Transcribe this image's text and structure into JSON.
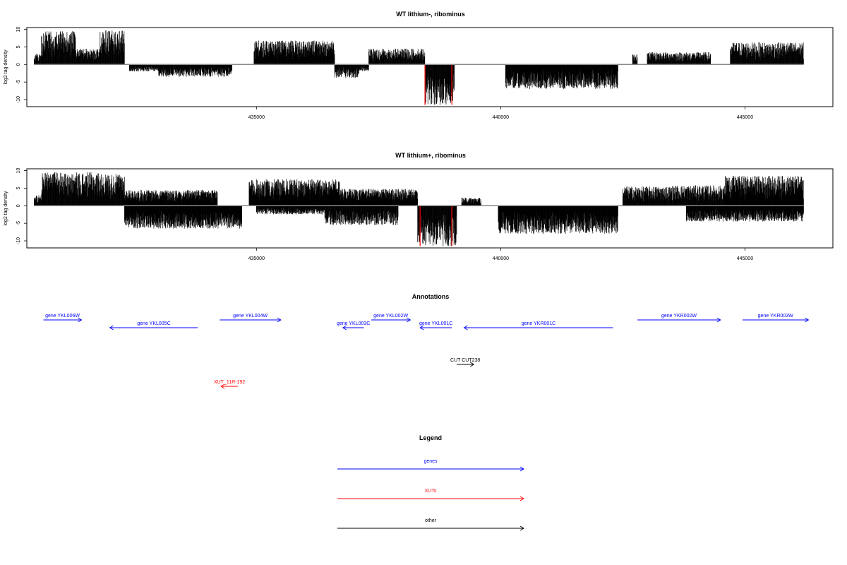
{
  "chart_data": [
    {
      "type": "bar",
      "title": "WT lithium-, ribominus",
      "ylabel": "log2 tag density",
      "ylim": [
        -12,
        10.5
      ],
      "xlim": [
        430300,
        446800
      ],
      "yticks": [
        -10,
        -5,
        0,
        5,
        10
      ],
      "xticks": [
        435000,
        440000,
        445000
      ],
      "xtick_labels": [
        "435000",
        "440000",
        "445000"
      ],
      "grid": false,
      "segments": [
        {
          "start": 430450,
          "end": 430600,
          "max": 3,
          "sign": 1
        },
        {
          "start": 430600,
          "end": 431300,
          "max": 9.5,
          "sign": 1
        },
        {
          "start": 431300,
          "end": 431800,
          "max": 4.5,
          "sign": 1
        },
        {
          "start": 431800,
          "end": 432300,
          "max": 9.8,
          "sign": 1
        },
        {
          "start": 432400,
          "end": 433000,
          "max": -2,
          "sign": -1
        },
        {
          "start": 433000,
          "end": 433900,
          "max": -3.5,
          "sign": -1
        },
        {
          "start": 433900,
          "end": 434500,
          "max": -3.5,
          "sign": -1
        },
        {
          "start": 434950,
          "end": 436600,
          "max": 6.8,
          "sign": 1
        },
        {
          "start": 436600,
          "end": 437100,
          "max": -3.8,
          "sign": -1
        },
        {
          "start": 437100,
          "end": 437300,
          "max": -2,
          "sign": -1
        },
        {
          "start": 437300,
          "end": 438450,
          "max": 4.5,
          "sign": 1
        },
        {
          "start": 438450,
          "end": 439050,
          "max": -11.5,
          "sign": -1
        },
        {
          "start": 440100,
          "end": 442400,
          "max": -7.0,
          "sign": -1
        },
        {
          "start": 442700,
          "end": 442800,
          "max": 3,
          "sign": 1
        },
        {
          "start": 443000,
          "end": 444300,
          "max": 3.5,
          "sign": 1
        },
        {
          "start": 444700,
          "end": 446200,
          "max": 6.3,
          "sign": 1
        }
      ],
      "red_lines": [
        {
          "x": 438450,
          "y": -11.5
        },
        {
          "x": 439000,
          "y": -11.5
        }
      ]
    },
    {
      "type": "bar",
      "title": "WT lithium+, ribominus",
      "ylabel": "log2 tag density",
      "ylim": [
        -12,
        10.5
      ],
      "xlim": [
        430300,
        446800
      ],
      "yticks": [
        -10,
        -5,
        0,
        5,
        10
      ],
      "xticks": [
        435000,
        440000,
        445000
      ],
      "xtick_labels": [
        "435000",
        "440000",
        "445000"
      ],
      "grid": false,
      "segments": [
        {
          "start": 430450,
          "end": 430600,
          "max": 3,
          "sign": 1
        },
        {
          "start": 430600,
          "end": 431800,
          "max": 9.5,
          "sign": 1
        },
        {
          "start": 431800,
          "end": 432300,
          "max": 9.0,
          "sign": 1
        },
        {
          "start": 432300,
          "end": 434200,
          "max": 4.5,
          "sign": 1
        },
        {
          "start": 432300,
          "end": 434700,
          "max": -6.5,
          "sign": -1
        },
        {
          "start": 434850,
          "end": 436700,
          "max": 7.5,
          "sign": 1
        },
        {
          "start": 435000,
          "end": 436400,
          "max": -2.5,
          "sign": -1
        },
        {
          "start": 436400,
          "end": 437900,
          "max": -5.5,
          "sign": -1
        },
        {
          "start": 436500,
          "end": 438300,
          "max": 4.8,
          "sign": 1
        },
        {
          "start": 438300,
          "end": 439100,
          "max": -11.5,
          "sign": -1
        },
        {
          "start": 439200,
          "end": 439600,
          "max": 2.3,
          "sign": 1
        },
        {
          "start": 439950,
          "end": 442400,
          "max": -8.0,
          "sign": -1
        },
        {
          "start": 442500,
          "end": 443500,
          "max": 5.5,
          "sign": 1
        },
        {
          "start": 443500,
          "end": 444600,
          "max": 5.8,
          "sign": 1
        },
        {
          "start": 443800,
          "end": 446200,
          "max": -4.5,
          "sign": -1
        },
        {
          "start": 444600,
          "end": 446200,
          "max": 8.5,
          "sign": 1
        }
      ],
      "red_lines": [
        {
          "x": 438350,
          "y": -11.5
        },
        {
          "x": 439000,
          "y": -11.5
        }
      ]
    }
  ],
  "annotations": {
    "title": "Annotations",
    "features": [
      {
        "label": "gene YKL006W",
        "start": 430640,
        "end": 431420,
        "strand": "+",
        "row": 0,
        "color": "#0000ff"
      },
      {
        "label": "gene YKL005C",
        "start": 432000,
        "end": 433800,
        "strand": "-",
        "row": 1,
        "color": "#0000ff"
      },
      {
        "label": "gene YKL004W",
        "start": 434250,
        "end": 435500,
        "strand": "+",
        "row": 0,
        "color": "#0000ff"
      },
      {
        "label": "gene YKL003C",
        "start": 436770,
        "end": 437200,
        "strand": "-",
        "row": 1,
        "color": "#0000ff"
      },
      {
        "label": "gene YKL002W",
        "start": 437350,
        "end": 438150,
        "strand": "+",
        "row": 0,
        "color": "#0000ff"
      },
      {
        "label": "gene YKL001C",
        "start": 438350,
        "end": 439000,
        "strand": "-",
        "row": 1,
        "color": "#0000ff"
      },
      {
        "label": "gene YKR001C",
        "start": 439250,
        "end": 442300,
        "strand": "-",
        "row": 1,
        "color": "#0000ff"
      },
      {
        "label": "gene YKR002W",
        "start": 442800,
        "end": 444500,
        "strand": "+",
        "row": 0,
        "color": "#0000ff"
      },
      {
        "label": "gene YKR003W",
        "start": 444950,
        "end": 446300,
        "strand": "+",
        "row": 0,
        "color": "#0000ff"
      },
      {
        "label": "CUT CUT238",
        "start": 439100,
        "end": 439450,
        "strand": "+",
        "row": 2,
        "color": "#000000"
      },
      {
        "label": "XUT_11R-192",
        "start": 434275,
        "end": 434620,
        "strand": "-",
        "row": 3,
        "color": "#ff0000"
      }
    ]
  },
  "legend": {
    "title": "Legend",
    "items": [
      {
        "label": "genes",
        "color": "#0000ff"
      },
      {
        "label": "XUTs",
        "color": "#ff0000"
      },
      {
        "label": "other",
        "color": "#000000"
      }
    ]
  }
}
